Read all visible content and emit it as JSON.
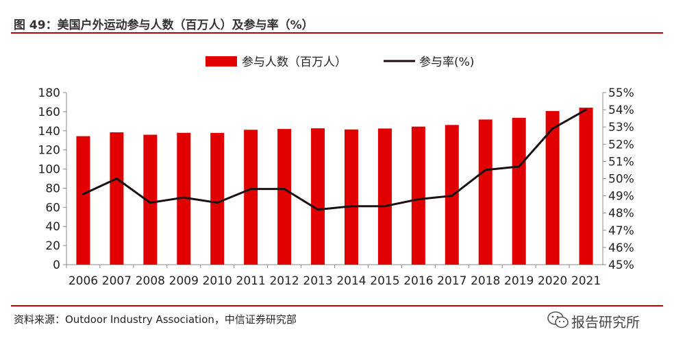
{
  "header": {
    "title": "图 49：美国户外运动参与人数（百万人）及参与率（%）"
  },
  "chart_data": {
    "type": "bar",
    "categories": [
      "2006",
      "2007",
      "2008",
      "2009",
      "2010",
      "2011",
      "2012",
      "2013",
      "2014",
      "2015",
      "2016",
      "2017",
      "2018",
      "2019",
      "2020",
      "2021"
    ],
    "series": [
      {
        "name": "参与人数（百万人）",
        "type": "bar",
        "axis": "left",
        "color": "#e00000",
        "values": [
          134.4,
          138.4,
          135.9,
          137.9,
          137.8,
          141.1,
          141.9,
          142.6,
          141.4,
          142.4,
          144.4,
          146.1,
          151.8,
          153.6,
          160.7,
          164.2
        ]
      },
      {
        "name": "参与率(%)",
        "type": "line",
        "axis": "right",
        "color": "#1a1010",
        "values": [
          49.1,
          50.0,
          48.6,
          48.9,
          48.6,
          49.4,
          49.4,
          48.2,
          48.4,
          48.4,
          48.8,
          49.0,
          50.5,
          50.7,
          52.9,
          54.0
        ]
      }
    ],
    "ylim_left": [
      0,
      180
    ],
    "ylim_right": [
      45,
      55
    ],
    "yticks_left": [
      "0",
      "20",
      "40",
      "60",
      "80",
      "100",
      "120",
      "140",
      "160",
      "180"
    ],
    "yticks_right": [
      "45%",
      "46%",
      "47%",
      "48%",
      "49%",
      "50%",
      "51%",
      "52%",
      "53%",
      "54%",
      "55%"
    ],
    "legend": "top-center",
    "grid": false
  },
  "footer": {
    "source": "资料来源：Outdoor Industry Association，中信证券研究部"
  },
  "watermark": {
    "text": "报告研究所"
  }
}
